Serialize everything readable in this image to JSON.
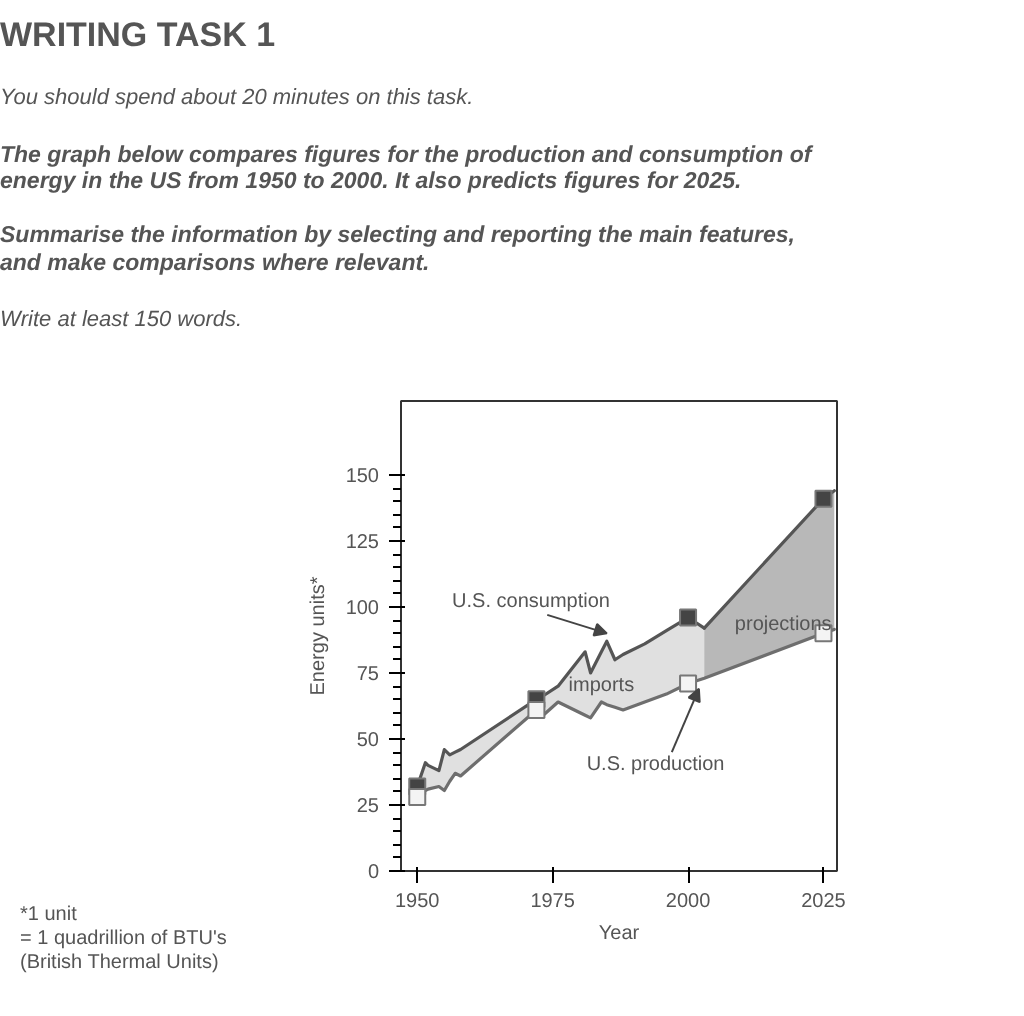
{
  "chart_data": {
    "type": "line",
    "title": "WRITING TASK 1",
    "subtitle": "You should spend about 20 minutes on this task.",
    "xlabel": "Year",
    "ylabel": "Energy units*",
    "annotations": [
      "The graph below compares figures for the production and consumption of\nenergy in the US from 1950 to 2000. It also predicts figures for 2025.",
      "Summarise the information by selecting and reporting the main features,\nand make comparisons where relevant.",
      "Write at least 150 words.",
      "*1 unit\n= 1 quadrillion of BTU's\n(British Thermal Units)",
      "imports",
      "projections",
      {
        "text": "U.S. consumption",
        "x": 1985,
        "y": 88
      },
      {
        "text": "U.S. production",
        "x": 2002,
        "y": 71
      }
    ],
    "series": [
      {
        "color": "#555555",
        "x": [
          1950,
          1951.5,
          1952,
          1954,
          1955,
          1956,
          1957,
          1958,
          1972,
          1973,
          1976,
          1981,
          1982,
          1984,
          1985,
          1986.5,
          1988,
          1992,
          1996,
          2000,
          2003
        ],
        "values": [
          32,
          41,
          40,
          38,
          46,
          44,
          45,
          46,
          65,
          66,
          70,
          83,
          75,
          83,
          87,
          80,
          82,
          86,
          91,
          96,
          92
        ],
        "lower": [
          28,
          30.5,
          31,
          32,
          30.5,
          34,
          37,
          36,
          61,
          58.5,
          64,
          59,
          58,
          64,
          63,
          62,
          61,
          64,
          67,
          71,
          73
        ],
        "upper": [
          32,
          41,
          40,
          38,
          46,
          44,
          45,
          46,
          65,
          66,
          70,
          83,
          75,
          83,
          87,
          80,
          82,
          86,
          91,
          96,
          92
        ]
      },
      {
        "type": "line",
        "color": "#555555",
        "x": [
          2003,
          2025,
          2027
        ],
        "values": [
          92,
          141,
          144
        ],
        "lower": [
          73,
          90,
          91.5
        ],
        "upper": [
          92,
          141,
          144
        ]
      },
      {
        "type": "line",
        "color": "#6e6e6e",
        "x": [
          1950,
          1951.5,
          1952,
          1954,
          1955,
          1956,
          1957,
          1958,
          1972,
          1973,
          1976,
          1981,
          1982,
          1984,
          1985,
          1986.5,
          1988,
          1992,
          1996,
          2000,
          2003,
          2025,
          2027
        ],
        "values": [
          28,
          30.5,
          31,
          32,
          30.5,
          34,
          37,
          36,
          61,
          58.5,
          64,
          59,
          58,
          64,
          63,
          62,
          61,
          64,
          67,
          71,
          73,
          90,
          91.5
        ]
      },
      {
        "type": "scatter",
        "marker": "square",
        "color": "#444444",
        "x": [
          1950,
          1972,
          2000,
          2025
        ],
        "values": [
          32,
          65,
          96,
          141
        ]
      },
      {
        "type": "scatter",
        "marker": "square",
        "color": "#f4f4f4",
        "x": [
          1950,
          1972,
          2000,
          2025
        ],
        "values": [
          28,
          61,
          71,
          90
        ]
      }
    ],
    "xlim": [
      1947,
      2027.5
    ],
    "ylim": [
      0,
      178
    ],
    "xticks": [
      1950,
      1975,
      2000,
      2025
    ],
    "yticks": [
      0,
      25,
      50,
      75,
      100,
      125,
      150
    ],
    "grid": false
  }
}
